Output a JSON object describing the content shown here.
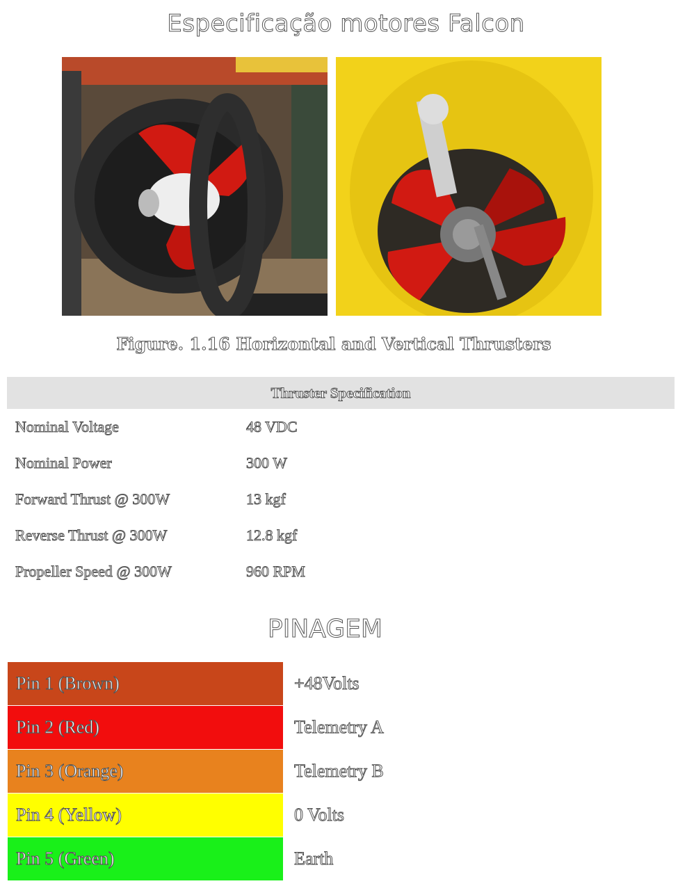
{
  "title": "Especificação motores Falcon",
  "photos": [
    {
      "name": "horizontal-thruster-photo",
      "alt": "horizontal-thruster"
    },
    {
      "name": "vertical-thruster-photo",
      "alt": "vertical-thruster"
    }
  ],
  "caption": "Figure. 1.16  Horizontal and Vertical Thrusters",
  "spec_table": {
    "header": "Thruster Specification",
    "rows": [
      {
        "label": "Nominal Voltage",
        "value": "48 VDC"
      },
      {
        "label": "Nominal Power",
        "value": "300 W"
      },
      {
        "label": "Forward Thrust @ 300W",
        "value": "13 kgf"
      },
      {
        "label": "Reverse Thrust @ 300W",
        "value": "12.8 kgf"
      },
      {
        "label": "Propeller Speed @ 300W",
        "value": "960 RPM"
      }
    ]
  },
  "pinout": {
    "heading": "PINAGEM",
    "pins": [
      {
        "label": "Pin 1 (Brown)",
        "function": "+48Volts",
        "color": "#c8461a"
      },
      {
        "label": "Pin 2 (Red)",
        "function": "Telemetry A",
        "color": "#f20d0d"
      },
      {
        "label": "Pin 3 (Orange)",
        "function": "Telemetry B",
        "color": "#e8821e"
      },
      {
        "label": "Pin 4 (Yellow)",
        "function": "0 Volts",
        "color": "#ffff00"
      },
      {
        "label": "Pin 5 (Green)",
        "function": "Earth",
        "color": "#19f019"
      }
    ]
  },
  "colors": {
    "table_header_bg": "#e2e2e2",
    "photo_yellow": "#f2d21a",
    "propeller_red": "#d11a12",
    "duct_black": "#2a2a2a"
  }
}
